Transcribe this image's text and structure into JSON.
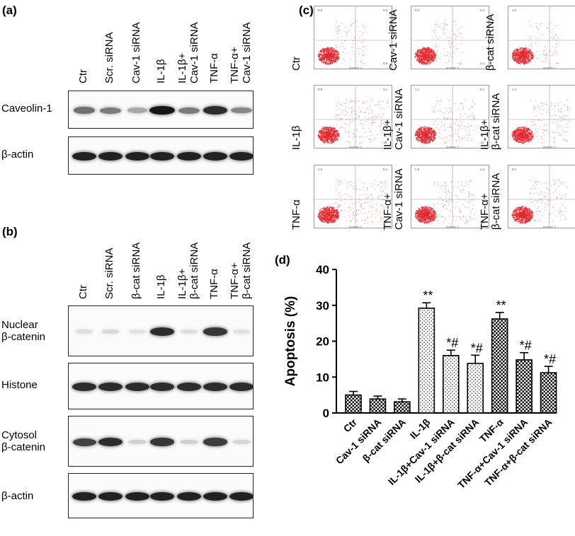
{
  "panel_a": {
    "label": "(a)",
    "lanes": [
      "Ctr",
      "Scr. siRNA",
      "Cav-1 siRNA",
      "IL-1β",
      "IL-1β+\nCav-1 siRNA",
      "TNF-α",
      "TNF-α+\nCav-1 siRNA"
    ],
    "blots": [
      {
        "label": "Caveolin-1",
        "intensity": [
          0.55,
          0.5,
          0.3,
          0.95,
          0.5,
          0.85,
          0.45
        ]
      },
      {
        "label": "β-actin",
        "intensity": [
          0.9,
          0.9,
          0.9,
          0.9,
          0.9,
          0.9,
          0.9
        ]
      }
    ]
  },
  "panel_b": {
    "label": "(b)",
    "lanes": [
      "Ctr",
      "Scr. siRNA",
      "β-cat siRNA",
      "IL-1β",
      "IL-1β+\nβ-cat siRNA",
      "TNF-α",
      "TNF-α+\nβ-cat siRNA"
    ],
    "blots": [
      {
        "label": "Nuclear\nβ-catenin",
        "intensity": [
          0.06,
          0.08,
          0.04,
          0.85,
          0.06,
          0.8,
          0.05
        ]
      },
      {
        "label": "Histone",
        "intensity": [
          0.85,
          0.85,
          0.85,
          0.85,
          0.85,
          0.85,
          0.85
        ]
      },
      {
        "label": "Cytosol\nβ-catenin",
        "intensity": [
          0.75,
          0.85,
          0.12,
          0.8,
          0.12,
          0.78,
          0.1
        ]
      },
      {
        "label": "β-actin",
        "intensity": [
          0.9,
          0.9,
          0.9,
          0.9,
          0.9,
          0.9,
          0.9
        ]
      }
    ]
  },
  "panel_c": {
    "label": "(c)",
    "axis_label_x": "Annexin V",
    "plots": [
      {
        "label": "Ctr",
        "spread": 0.15,
        "q": [
          "0.5",
          "0.4",
          "2.5"
        ]
      },
      {
        "label": "Cav-1 siRNA",
        "spread": 0.18,
        "q": [
          "0.3",
          "2.4",
          "1.1"
        ]
      },
      {
        "label": "β-cat siRNA",
        "spread": 0.15,
        "q": [
          "1.0",
          "0.4",
          "3.1"
        ]
      },
      {
        "label": "IL-1β",
        "spread": 0.6,
        "q": [
          "0.8",
          "4.1",
          "25"
        ]
      },
      {
        "label": "IL-1β+\nCav-1 siRNA",
        "spread": 0.4,
        "q": [
          "1.1",
          "0.1",
          "14"
        ]
      },
      {
        "label": "IL-1β+\nβ-cat siRNA",
        "spread": 0.35,
        "q": [
          "1.2",
          "0.3",
          "14"
        ]
      },
      {
        "label": "TNF-α",
        "spread": 0.55,
        "q": [
          "1.6",
          "0.1",
          "22"
        ]
      },
      {
        "label": "TNF-α+\nCav-1 siRNA",
        "spread": 0.4,
        "q": [
          "1.6",
          "1.3",
          "13"
        ]
      },
      {
        "label": "TNF-α+\nβ-cat siRNA",
        "spread": 0.3,
        "q": [
          "0.1",
          "0.3",
          "8"
        ]
      }
    ]
  },
  "panel_d": {
    "label": "(d)",
    "chart_data": {
      "type": "bar",
      "categories": [
        "Ctr",
        "Cav-1 siRNA",
        "β-cat siRNA",
        "IL-1β",
        "IL-1β+Cav-1 siRNA",
        "IL-1β+β-cat siRNA",
        "TNF-α",
        "TNF-α+Cav-1 siRNA",
        "TNF-α+β-cat siRNA"
      ],
      "values": [
        5.0,
        3.9,
        3.1,
        29.2,
        16.0,
        13.8,
        26.2,
        14.8,
        11.2
      ],
      "errors": [
        1.0,
        0.8,
        0.8,
        1.5,
        1.5,
        2.3,
        1.8,
        2.0,
        1.8
      ],
      "annotations": [
        "",
        "",
        "",
        "**",
        "*#",
        "*#",
        "**",
        "*#",
        "*#"
      ],
      "patterns": [
        "check",
        "check",
        "check",
        "dots",
        "dots",
        "dots",
        "check",
        "check",
        "check"
      ],
      "ylabel": "Apoptosis (%)",
      "ylim": [
        0,
        40
      ],
      "yticks": [
        "0",
        "10",
        "20",
        "30",
        "40"
      ]
    }
  }
}
